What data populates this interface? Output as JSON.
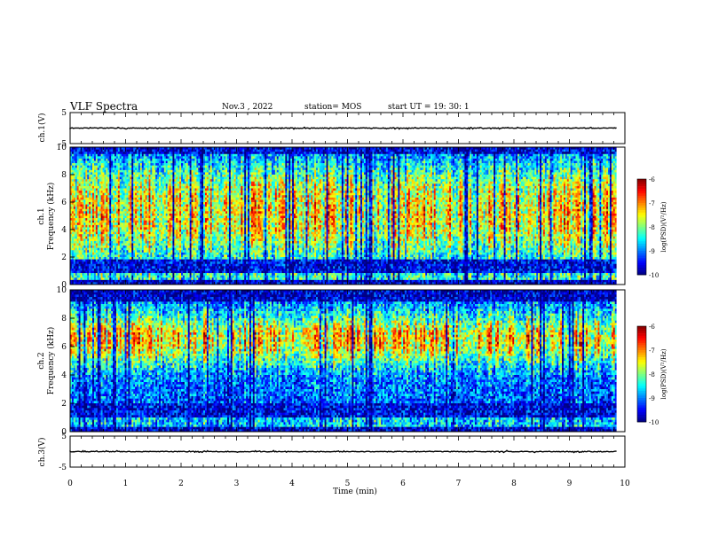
{
  "header": {
    "title": "VLF Spectra",
    "date": "Nov.3  , 2022",
    "station": "station= MOS",
    "start": "start  UT =   19: 30: 1"
  },
  "chart_data": [
    {
      "type": "line",
      "name": "ch1-waveform",
      "ylabel": "ch.1(V)",
      "ylim": [
        -5,
        5
      ],
      "yticks": [
        "5",
        "-5"
      ],
      "xlim": [
        0,
        10
      ],
      "baseline": 0
    },
    {
      "type": "heatmap",
      "name": "ch1-spectrogram",
      "ylabel": "ch.1\nFrequency (kHz)",
      "ylim": [
        0,
        10
      ],
      "yticks": [
        "0",
        "2",
        "4",
        "6",
        "8",
        "10"
      ],
      "xlim": [
        0,
        9.85
      ],
      "colorbar": {
        "label": "log(PSD)(V²/Hz)",
        "ticks": [
          "-6",
          "-7",
          "-8",
          "-9",
          "-10"
        ],
        "range": [
          -10,
          -6
        ]
      }
    },
    {
      "type": "heatmap",
      "name": "ch2-spectrogram",
      "ylabel": "ch.2\nFrequency (kHz)",
      "ylim": [
        0,
        10
      ],
      "yticks": [
        "0",
        "2",
        "4",
        "6",
        "8",
        "10"
      ],
      "xlim": [
        0,
        9.85
      ],
      "colorbar": {
        "label": "log(PSD)(V²/Hz)",
        "ticks": [
          "-6",
          "-7",
          "-8",
          "-9",
          "-10"
        ],
        "range": [
          -10,
          -6
        ]
      }
    },
    {
      "type": "line",
      "name": "ch3-waveform",
      "ylabel": "ch.3(V)",
      "ylim": [
        -5,
        5
      ],
      "yticks": [
        "5",
        "-5"
      ],
      "xlim": [
        0,
        10
      ],
      "baseline": 0
    }
  ],
  "xaxis": {
    "label": "Time  (min)",
    "ticks": [
      "0",
      "1",
      "2",
      "3",
      "4",
      "5",
      "6",
      "7",
      "8",
      "9",
      "10"
    ],
    "range": [
      0,
      10
    ]
  }
}
